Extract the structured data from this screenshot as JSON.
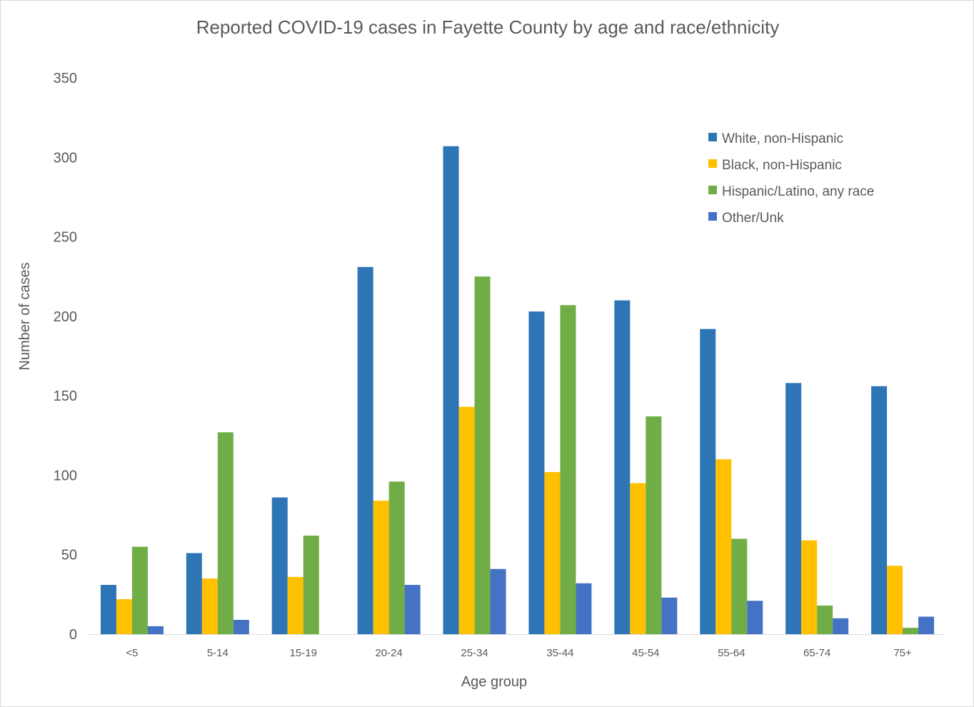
{
  "chart_data": {
    "type": "bar",
    "title": "Reported COVID-19 cases in Fayette County by age and race/ethnicity",
    "xlabel": "Age group",
    "ylabel": "Number of cases",
    "categories": [
      "<5",
      "5-14",
      "15-19",
      "20-24",
      "25-34",
      "35-44",
      "45-54",
      "55-64",
      "65-74",
      "75+"
    ],
    "series": [
      {
        "name": "White, non-Hispanic",
        "color": "#2E75B6",
        "values": [
          31,
          51,
          86,
          231,
          307,
          203,
          210,
          192,
          158,
          156
        ]
      },
      {
        "name": "Black, non-Hispanic",
        "color": "#FFC000",
        "values": [
          22,
          35,
          36,
          84,
          143,
          102,
          95,
          110,
          59,
          43
        ]
      },
      {
        "name": "Hispanic/Latino, any race",
        "color": "#70AD47",
        "values": [
          55,
          127,
          62,
          96,
          225,
          207,
          137,
          60,
          18,
          4
        ]
      },
      {
        "name": "Other/Unk",
        "color": "#4472C4",
        "values": [
          5,
          9,
          0,
          31,
          41,
          32,
          23,
          21,
          10,
          11
        ]
      }
    ],
    "ylim": [
      0,
      350
    ],
    "yticks": [
      0,
      50,
      100,
      150,
      200,
      250,
      300,
      350
    ],
    "grid": false,
    "legend_position": "top-right",
    "axis_color": "#D9D9D9",
    "text_color": "#595959"
  }
}
